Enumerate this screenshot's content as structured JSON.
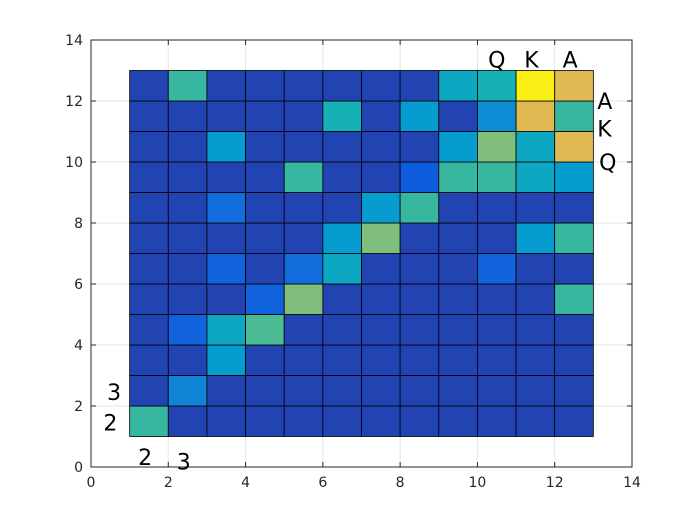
{
  "chart_data": {
    "type": "heatmap",
    "title": "",
    "xlabel": "",
    "ylabel": "",
    "xlim": [
      0,
      14
    ],
    "ylim": [
      0,
      14
    ],
    "xticks": [
      "0",
      "2",
      "4",
      "6",
      "8",
      "10",
      "12",
      "14"
    ],
    "yticks": [
      "0",
      "2",
      "4",
      "6",
      "8",
      "10",
      "12",
      "14"
    ],
    "grid": true,
    "colormap": "parula",
    "cell_range": {
      "x": [
        1,
        13
      ],
      "y": [
        1,
        13
      ]
    },
    "clim": [
      0,
      1
    ],
    "values_bottom_to_top": [
      [
        0.45,
        0.05,
        0.05,
        0.05,
        0.05,
        0.05,
        0.05,
        0.05,
        0.05,
        0.05,
        0.05,
        0.05
      ],
      [
        0.05,
        0.22,
        0.05,
        0.05,
        0.05,
        0.05,
        0.05,
        0.05,
        0.05,
        0.05,
        0.05,
        0.05
      ],
      [
        0.05,
        0.05,
        0.3,
        0.05,
        0.05,
        0.05,
        0.05,
        0.05,
        0.05,
        0.05,
        0.05,
        0.05
      ],
      [
        0.05,
        0.12,
        0.35,
        0.48,
        0.05,
        0.05,
        0.05,
        0.05,
        0.05,
        0.05,
        0.05,
        0.05
      ],
      [
        0.05,
        0.05,
        0.05,
        0.12,
        0.55,
        0.05,
        0.05,
        0.05,
        0.05,
        0.05,
        0.05,
        0.45
      ],
      [
        0.05,
        0.05,
        0.12,
        0.05,
        0.15,
        0.35,
        0.05,
        0.05,
        0.05,
        0.12,
        0.05,
        0.05
      ],
      [
        0.05,
        0.05,
        0.05,
        0.05,
        0.05,
        0.3,
        0.55,
        0.05,
        0.05,
        0.05,
        0.3,
        0.45
      ],
      [
        0.05,
        0.05,
        0.15,
        0.05,
        0.05,
        0.05,
        0.3,
        0.45,
        0.05,
        0.05,
        0.05,
        0.05
      ],
      [
        0.05,
        0.05,
        0.05,
        0.05,
        0.45,
        0.05,
        0.05,
        0.1,
        0.45,
        0.45,
        0.35,
        0.3
      ],
      [
        0.05,
        0.05,
        0.3,
        0.05,
        0.05,
        0.05,
        0.05,
        0.05,
        0.3,
        0.55,
        0.35,
        0.7
      ],
      [
        0.05,
        0.05,
        0.05,
        0.05,
        0.05,
        0.4,
        0.05,
        0.3,
        0.05,
        0.25,
        0.7,
        0.45
      ],
      [
        0.05,
        0.45,
        0.05,
        0.05,
        0.05,
        0.05,
        0.05,
        0.05,
        0.35,
        0.4,
        0.95,
        0.7
      ]
    ],
    "bottom_labels": [
      "2",
      "3"
    ],
    "left_labels": [
      "2",
      "3"
    ],
    "top_labels": [
      "Q",
      "K",
      "A"
    ],
    "right_labels": [
      "A",
      "K",
      "Q"
    ]
  }
}
